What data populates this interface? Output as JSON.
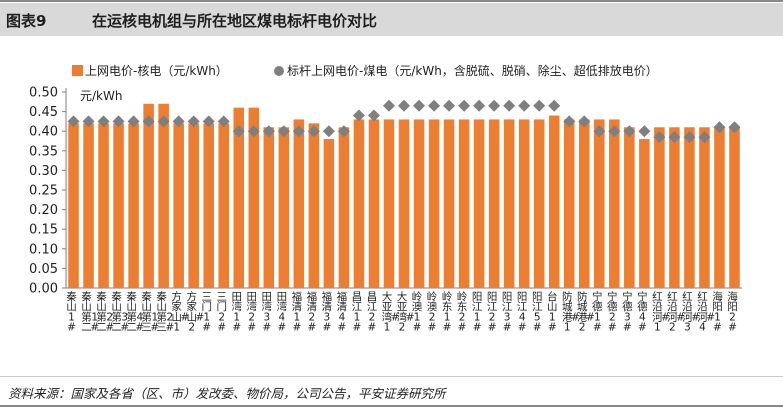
{
  "header": {
    "figure_number": "图表9",
    "title": "在运核电机组与所在地区煤电标杆电价对比"
  },
  "footer": {
    "source": "资料来源：国家及各省（区、市）发改委、物价局，公司公告，平安证券研究所"
  },
  "colors": {
    "nuclear": "#ED7D31",
    "coal": "#7F7F7F",
    "header_bg": "#D9D9D9"
  },
  "chart_data": {
    "type": "bar",
    "ylabel": "元/kWh",
    "ylim": [
      0,
      0.5
    ],
    "yticks": [
      "0.00",
      "0.05",
      "0.10",
      "0.15",
      "0.20",
      "0.25",
      "0.30",
      "0.35",
      "0.40",
      "0.45",
      "0.50"
    ],
    "grid": false,
    "legend_position": "top",
    "categories": [
      "秦山1#",
      "秦山第二1#",
      "秦山第二2#",
      "秦山第二3#",
      "秦山第二4#",
      "秦山第三1#",
      "秦山第三2#",
      "方家山1#",
      "方家山2#",
      "三门1#",
      "三门2#",
      "田湾1#",
      "田湾2#",
      "田湾3#",
      "田湾4#",
      "福清1#",
      "福清2#",
      "福清3#",
      "福清4#",
      "昌江1#",
      "昌江2#",
      "大亚湾1#",
      "大亚湾2#",
      "岭澳1#",
      "岭澳2#",
      "岭东1#",
      "岭东2#",
      "阳江1#",
      "阳江2#",
      "阳江3#",
      "阳江4#",
      "阳江5#",
      "台山1#",
      "防城港1#",
      "防城港2#",
      "宁德1#",
      "宁德2#",
      "宁德3#",
      "宁德4#",
      "红沿河1#",
      "红沿河2#",
      "红沿河3#",
      "红沿河4#",
      "海阳1#",
      "海阳2#"
    ],
    "series": [
      {
        "name": "上网电价-核电（元/kWh）",
        "type": "bar",
        "values": [
          0.42,
          0.42,
          0.42,
          0.42,
          0.42,
          0.47,
          0.47,
          0.42,
          0.42,
          0.42,
          0.42,
          0.46,
          0.46,
          0.41,
          0.41,
          0.43,
          0.42,
          0.38,
          0.41,
          0.43,
          0.43,
          0.43,
          0.43,
          0.43,
          0.43,
          0.43,
          0.43,
          0.43,
          0.43,
          0.43,
          0.43,
          0.43,
          0.44,
          0.43,
          0.43,
          0.43,
          0.43,
          0.41,
          0.38,
          0.41,
          0.41,
          0.41,
          0.41,
          0.41,
          0.41
        ]
      },
      {
        "name": "标杆上网电价-煤电（元/kWh，含脱硫、脱硝、除尘、超低排放电价）",
        "type": "scatter",
        "values": [
          0.425,
          0.425,
          0.425,
          0.425,
          0.425,
          0.425,
          0.425,
          0.425,
          0.425,
          0.425,
          0.425,
          0.4,
          0.4,
          0.4,
          0.4,
          0.4,
          0.4,
          0.4,
          0.4,
          0.44,
          0.44,
          0.465,
          0.465,
          0.465,
          0.465,
          0.465,
          0.465,
          0.465,
          0.465,
          0.465,
          0.465,
          0.465,
          0.465,
          0.425,
          0.425,
          0.4,
          0.4,
          0.4,
          0.4,
          0.385,
          0.385,
          0.385,
          0.385,
          0.41,
          0.41
        ]
      }
    ]
  }
}
